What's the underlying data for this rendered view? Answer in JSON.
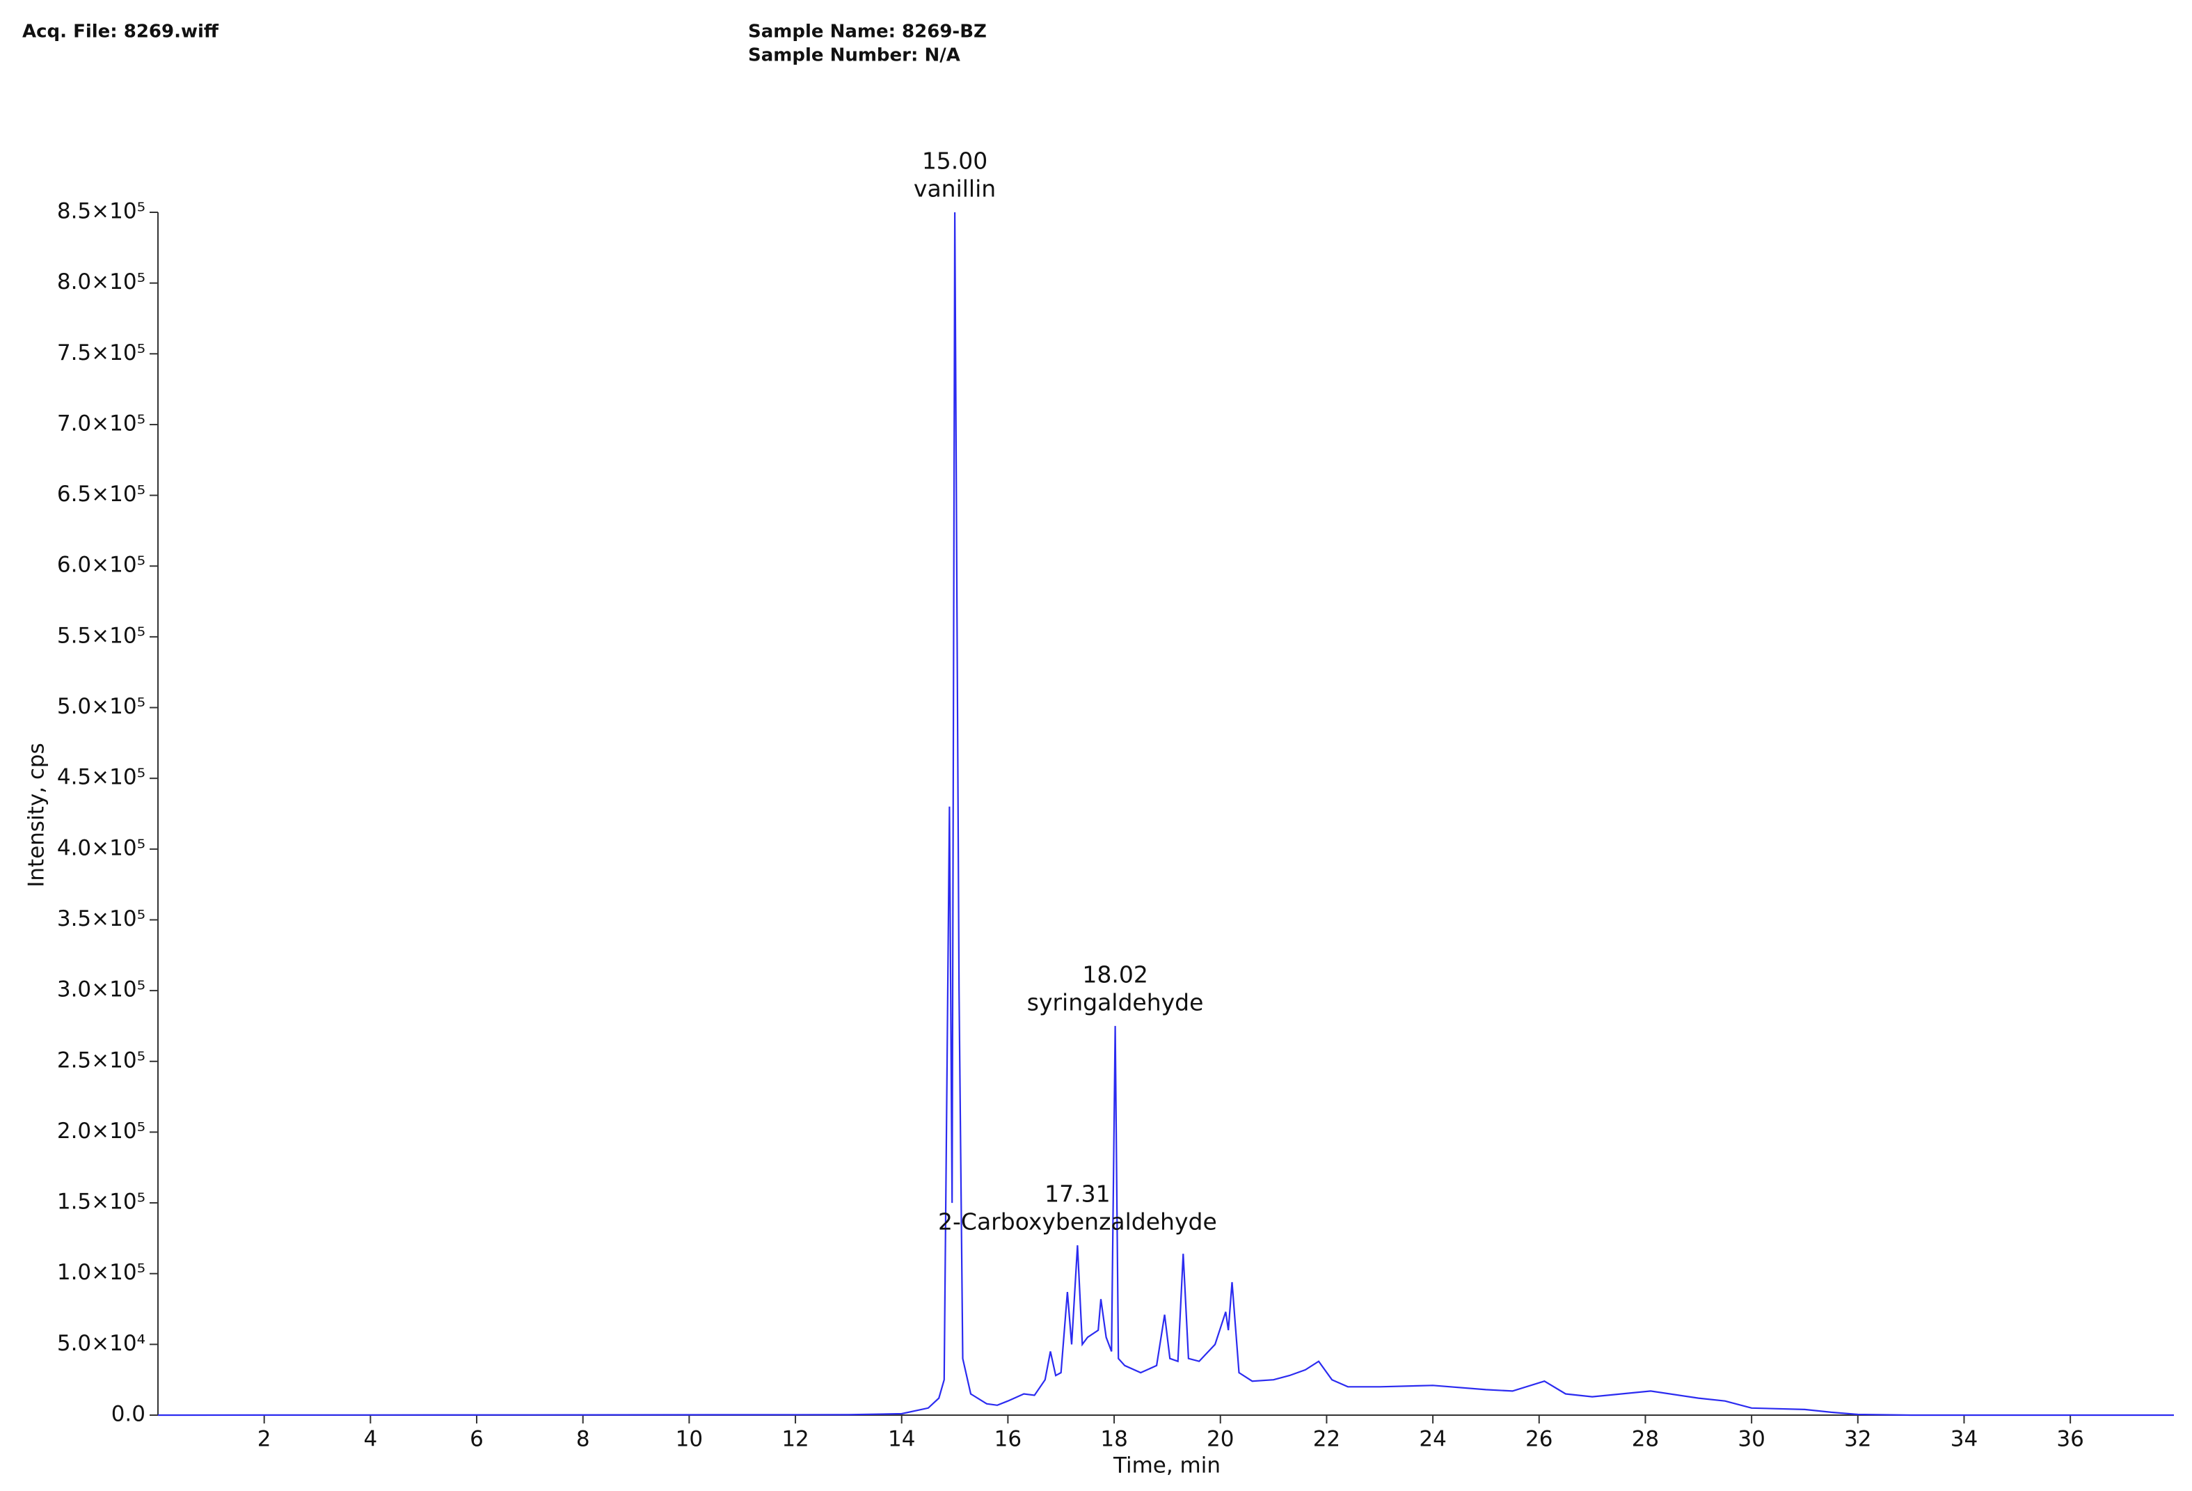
{
  "header": {
    "acq_file": "Acq. File: 8269.wiff",
    "sample_name": "Sample Name: 8269-BZ",
    "sample_number": "Sample Number: N/A"
  },
  "chart_data": {
    "type": "line",
    "color": "#2b2bf0",
    "x_label": "Time, min",
    "y_label": "Intensity, cps",
    "xlim": [
      0,
      37.95
    ],
    "ylim": [
      0,
      850000
    ],
    "xticks": [
      2,
      4,
      6,
      8,
      10,
      12,
      14,
      16,
      18,
      20,
      22,
      24,
      26,
      28,
      30,
      32,
      34,
      36
    ],
    "yticks": [
      {
        "value": 0,
        "label": "0.0"
      },
      {
        "value": 50000,
        "label": "5.0×10⁴"
      },
      {
        "value": 100000,
        "label": "1.0×10⁵"
      },
      {
        "value": 150000,
        "label": "1.5×10⁵"
      },
      {
        "value": 200000,
        "label": "2.0×10⁵"
      },
      {
        "value": 250000,
        "label": "2.5×10⁵"
      },
      {
        "value": 300000,
        "label": "3.0×10⁵"
      },
      {
        "value": 350000,
        "label": "3.5×10⁵"
      },
      {
        "value": 400000,
        "label": "4.0×10⁵"
      },
      {
        "value": 450000,
        "label": "4.5×10⁵"
      },
      {
        "value": 500000,
        "label": "5.0×10⁵"
      },
      {
        "value": 550000,
        "label": "5.5×10⁵"
      },
      {
        "value": 600000,
        "label": "6.0×10⁵"
      },
      {
        "value": 650000,
        "label": "6.5×10⁵"
      },
      {
        "value": 700000,
        "label": "7.0×10⁵"
      },
      {
        "value": 750000,
        "label": "7.5×10⁵"
      },
      {
        "value": 800000,
        "label": "8.0×10⁵"
      },
      {
        "value": 850000,
        "label": "8.5×10⁵"
      }
    ],
    "x": [
      0,
      13,
      14,
      14.5,
      14.7,
      14.8,
      14.9,
      14.95,
      15.0,
      15.08,
      15.15,
      15.3,
      15.6,
      15.8,
      16.0,
      16.3,
      16.5,
      16.7,
      16.8,
      16.9,
      17.0,
      17.12,
      17.2,
      17.31,
      17.4,
      17.5,
      17.7,
      17.75,
      17.85,
      17.95,
      18.02,
      18.08,
      18.2,
      18.5,
      18.8,
      18.95,
      19.05,
      19.2,
      19.3,
      19.4,
      19.6,
      19.9,
      20.1,
      20.15,
      20.22,
      20.35,
      20.6,
      21.0,
      21.3,
      21.6,
      21.85,
      22.1,
      22.4,
      23,
      24,
      25,
      25.5,
      26.1,
      26.5,
      27,
      28.1,
      29,
      29.5,
      30,
      31,
      31.5,
      32,
      33,
      37.95
    ],
    "values": [
      0,
      300,
      1000,
      5000,
      12000,
      25000,
      430000,
      150000,
      850000,
      300000,
      40000,
      15000,
      8000,
      7000,
      10000,
      15000,
      14000,
      25000,
      45000,
      28000,
      30000,
      87000,
      50000,
      120000,
      50000,
      55000,
      60000,
      82000,
      55000,
      45000,
      275000,
      40000,
      35000,
      30000,
      35000,
      71000,
      40000,
      38000,
      114000,
      40000,
      38000,
      50000,
      73000,
      60000,
      94000,
      30000,
      24000,
      25000,
      28000,
      32000,
      38000,
      25000,
      20000,
      20000,
      21000,
      18000,
      17000,
      24000,
      15000,
      13000,
      17000,
      12000,
      10000,
      5000,
      4000,
      2000,
      500,
      0,
      0
    ],
    "annotations": [
      {
        "x": 15.0,
        "y": 850000,
        "label": "15.00",
        "text": "vanillin"
      },
      {
        "x": 18.02,
        "y": 275000,
        "label": "18.02",
        "text": "syringaldehyde"
      },
      {
        "x": 17.31,
        "y": 120000,
        "label": "17.31",
        "text": "2-Carboxybenzaldehyde"
      }
    ]
  }
}
